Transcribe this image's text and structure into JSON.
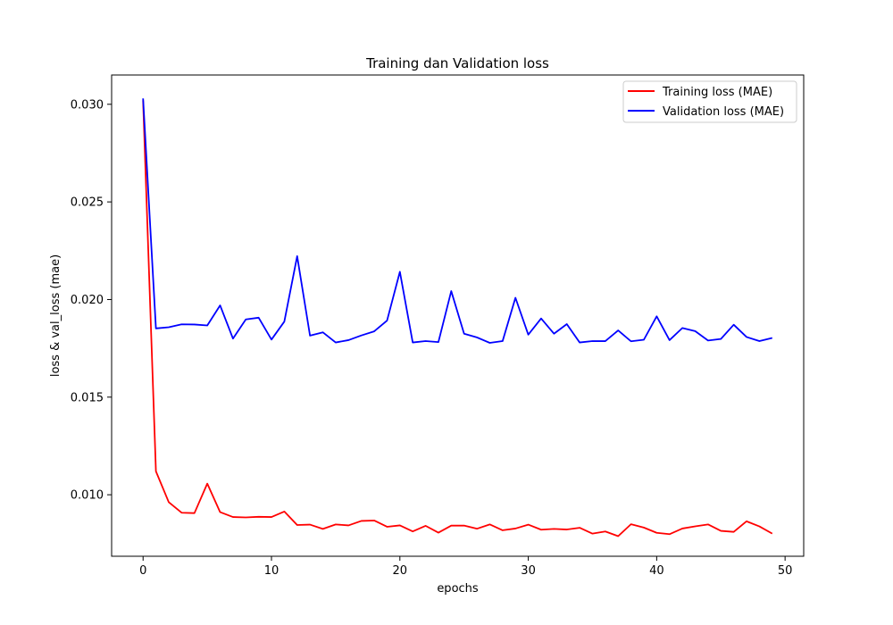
{
  "chart_data": {
    "type": "line",
    "title": "Training dan Validation loss",
    "xlabel": "epochs",
    "ylabel": "loss & val_loss (mae)",
    "xlim": [
      -2.45,
      51.45
    ],
    "ylim": [
      0.00685,
      0.0315
    ],
    "x_ticks": [
      0,
      10,
      20,
      30,
      40,
      50
    ],
    "y_ticks": [
      0.01,
      0.015,
      0.02,
      0.025,
      0.03
    ],
    "y_tick_labels": [
      "0.010",
      "0.015",
      "0.020",
      "0.025",
      "0.030"
    ],
    "grid": false,
    "legend_position": "top-right",
    "x": [
      0,
      1,
      2,
      3,
      4,
      5,
      6,
      7,
      8,
      9,
      10,
      11,
      12,
      13,
      14,
      15,
      16,
      17,
      18,
      19,
      20,
      21,
      22,
      23,
      24,
      25,
      26,
      27,
      28,
      29,
      30,
      31,
      32,
      33,
      34,
      35,
      36,
      37,
      38,
      39,
      40,
      41,
      42,
      43,
      44,
      45,
      46,
      47,
      48,
      49
    ],
    "series": [
      {
        "name": "Training loss (MAE)",
        "color": "#ff0000",
        "values": [
          0.0302,
          0.0112,
          0.00962,
          0.00908,
          0.00906,
          0.01057,
          0.00911,
          0.00886,
          0.00884,
          0.00887,
          0.00886,
          0.00914,
          0.00845,
          0.00847,
          0.00825,
          0.00848,
          0.00843,
          0.00866,
          0.00868,
          0.00836,
          0.00843,
          0.00812,
          0.00841,
          0.00806,
          0.00842,
          0.00842,
          0.00826,
          0.00848,
          0.00818,
          0.00827,
          0.00847,
          0.00821,
          0.00825,
          0.00822,
          0.00831,
          0.00801,
          0.00812,
          0.00788,
          0.00849,
          0.00832,
          0.00805,
          0.00798,
          0.00827,
          0.00838,
          0.00848,
          0.00815,
          0.0081,
          0.00864,
          0.00838,
          0.00801
        ]
      },
      {
        "name": "Validation loss (MAE)",
        "color": "#0000ff",
        "values": [
          0.0303,
          0.01852,
          0.01858,
          0.01873,
          0.01872,
          0.01867,
          0.0197,
          0.018,
          0.01898,
          0.01907,
          0.01795,
          0.01887,
          0.02222,
          0.01815,
          0.01832,
          0.0178,
          0.01792,
          0.01816,
          0.01837,
          0.01892,
          0.02142,
          0.0178,
          0.01787,
          0.01782,
          0.02043,
          0.01825,
          0.01806,
          0.01778,
          0.01787,
          0.02009,
          0.0182,
          0.01903,
          0.01825,
          0.01874,
          0.0178,
          0.01787,
          0.01787,
          0.01842,
          0.01786,
          0.01794,
          0.01914,
          0.01792,
          0.01854,
          0.01838,
          0.0179,
          0.01798,
          0.01871,
          0.01808,
          0.01787,
          0.01803
        ]
      }
    ]
  }
}
